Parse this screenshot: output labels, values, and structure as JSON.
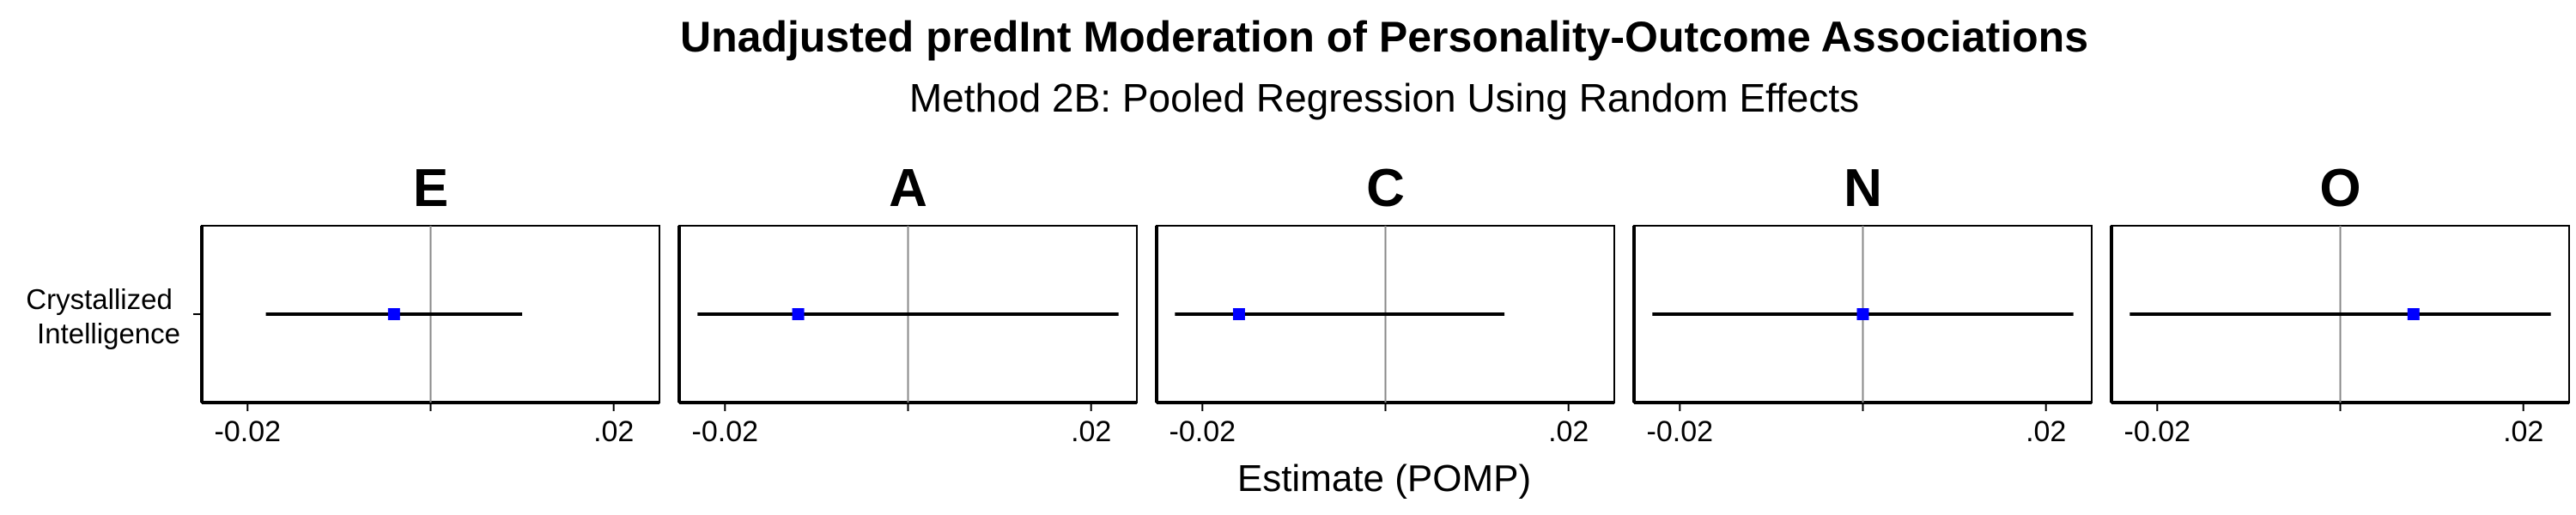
{
  "chart_data": {
    "type": "forest",
    "title": "Unadjusted predInt Moderation of Personality-Outcome Associations",
    "subtitle": "Method 2B: Pooled Regression Using Random Effects",
    "xlabel": "Estimate (POMP)",
    "ylabel": "",
    "xlim": [
      -0.025,
      0.025
    ],
    "x_ticks": [
      -0.02,
      0,
      0.02
    ],
    "x_tick_labels": [
      "-0.02",
      "",
      ".02"
    ],
    "reference_line": 0,
    "point_color": "#0000ff",
    "row_label_lines": [
      "Crystallized",
      "Intelligence"
    ],
    "panels": [
      {
        "facet": "E",
        "term": "Crystallized Intelligence",
        "estimate": -0.004,
        "lower": -0.018,
        "upper": 0.01
      },
      {
        "facet": "A",
        "term": "Crystallized Intelligence",
        "estimate": -0.012,
        "lower": -0.023,
        "upper": 0.023
      },
      {
        "facet": "C",
        "term": "Crystallized Intelligence",
        "estimate": -0.016,
        "lower": -0.023,
        "upper": 0.013
      },
      {
        "facet": "N",
        "term": "Crystallized Intelligence",
        "estimate": 0.0,
        "lower": -0.023,
        "upper": 0.023
      },
      {
        "facet": "O",
        "term": "Crystallized Intelligence",
        "estimate": 0.008,
        "lower": -0.023,
        "upper": 0.023
      }
    ]
  }
}
